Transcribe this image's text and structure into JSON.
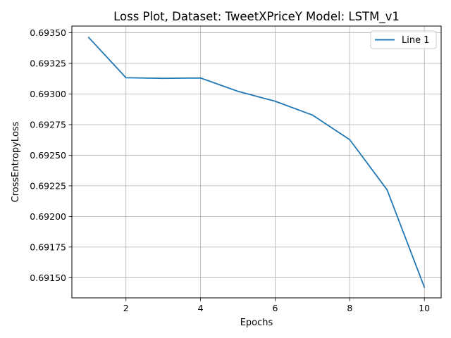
{
  "chart_data": {
    "type": "line",
    "title": "Loss Plot, Dataset: TweetXPriceY Model: LSTM_v1",
    "xlabel": "Epochs",
    "ylabel": "CrossEntropyLoss",
    "xlim": [
      0.55,
      10.45
    ],
    "ylim": [
      0.691335,
      0.693555
    ],
    "xticks": [
      2,
      4,
      6,
      8,
      10
    ],
    "xtick_labels": [
      "2",
      "4",
      "6",
      "8",
      "10"
    ],
    "yticks": [
      0.6915,
      0.69175,
      0.692,
      0.69225,
      0.6925,
      0.69275,
      0.693,
      0.69325,
      0.6935
    ],
    "ytick_labels": [
      "0.69150",
      "0.69175",
      "0.69200",
      "0.69225",
      "0.69250",
      "0.69275",
      "0.69300",
      "0.69325",
      "0.69350"
    ],
    "grid": true,
    "legend_position": "top-right",
    "x": [
      1,
      2,
      3,
      4,
      5,
      6,
      7,
      8,
      9,
      10
    ],
    "series": [
      {
        "name": "Line 1",
        "color": "#1f77b4",
        "values": [
          0.693462,
          0.693133,
          0.693128,
          0.693131,
          0.693022,
          0.692941,
          0.692828,
          0.692627,
          0.692218,
          0.691422
        ]
      }
    ]
  }
}
